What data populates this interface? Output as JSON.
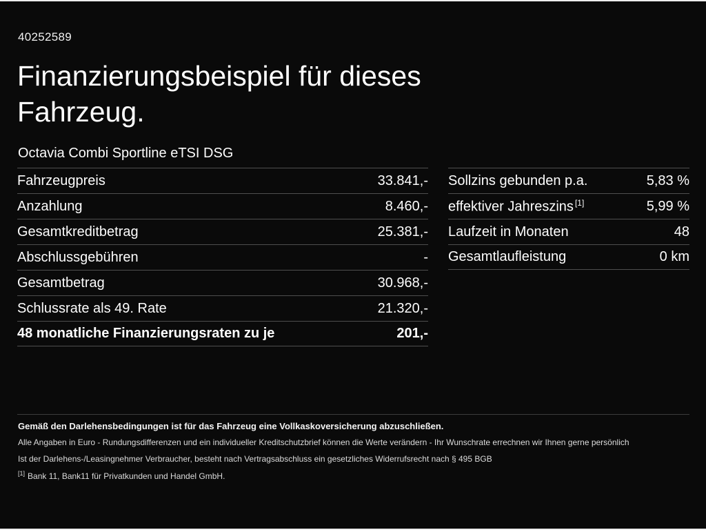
{
  "header": {
    "doc_id": "40252589",
    "title_line1": "Finanzierungsbeispiel für dieses",
    "title_line2": "Fahrzeug.",
    "subtitle": "Octavia Combi Sportline eTSI DSG"
  },
  "left_table": {
    "rows": [
      {
        "label": "Fahrzeugpreis",
        "value": "33.841,-"
      },
      {
        "label": "Anzahlung",
        "value": "8.460,-"
      },
      {
        "label": "Gesamtkreditbetrag",
        "value": "25.381,-"
      },
      {
        "label": "Abschlussgebühren",
        "value": "-"
      },
      {
        "label": "Gesamtbetrag",
        "value": "30.968,-"
      },
      {
        "label": "Schlussrate als 49. Rate",
        "value": "21.320,-"
      },
      {
        "label": "48 monatliche Finanzierungsraten zu je",
        "value": "201,-"
      }
    ]
  },
  "right_table": {
    "rows": [
      {
        "label": "Sollzins gebunden p.a.",
        "sup": "",
        "value": "5,83 %"
      },
      {
        "label": "effektiver Jahreszins",
        "sup": "[1]",
        "value": "5,99 %"
      },
      {
        "label": "Laufzeit in Monaten",
        "sup": "",
        "value": "48"
      },
      {
        "label": "Gesamtlaufleistung",
        "sup": "",
        "value": "0 km"
      }
    ]
  },
  "footer": {
    "line_bold": "Gemäß den Darlehensbedingungen ist für das Fahrzeug eine Vollkaskoversicherung abzuschließen.",
    "line2": "Alle Angaben in Euro - Rundungsdifferenzen und ein individueller Kreditschutzbrief können die Werte verändern - Ihr Wunschrate errechnen wir Ihnen gerne persönlich",
    "line3": "Ist der Darlehens-/Leasingnehmer Verbraucher, besteht nach Vertragsabschluss ein gesetzliches Widerrufsrecht nach § 495 BGB",
    "footnote_marker": "[1]",
    "footnote_text": "Bank 11, Bank11 für Privatkunden und Handel GmbH."
  },
  "colors": {
    "background": "#0a0a0a",
    "text": "#ffffff",
    "divider": "#4f4f4f"
  }
}
